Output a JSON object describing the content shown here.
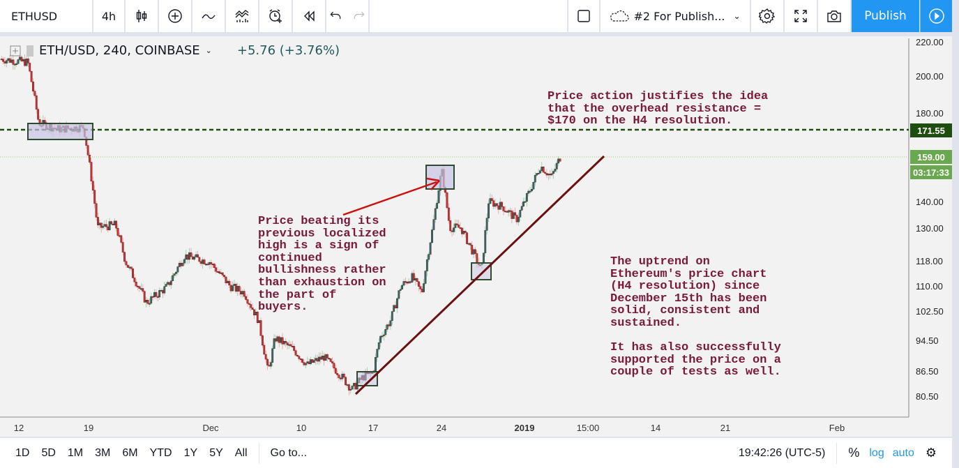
{
  "toolbar": {
    "symbol": "ETHUSD",
    "interval": "4h",
    "layout_name": "#2 For Publish...",
    "publish_label": "Publish",
    "icons": [
      "candles-icon",
      "add-indicator-icon",
      "line-style-icon",
      "indicators-icon",
      "alert-icon",
      "replay-icon",
      "undo-icon",
      "redo-icon",
      "rectangle-icon",
      "cloud-icon",
      "gear-icon",
      "fullscreen-icon",
      "camera-icon",
      "play-icon"
    ]
  },
  "legend": {
    "title": "ETH/USD, 240, COINBASE",
    "change": "+5.76 (+3.76%)"
  },
  "price_axis": {
    "labels": [
      "220.00",
      "200.00",
      "180.00",
      "140.00",
      "130.00",
      "118.00",
      "110.00",
      "102.50",
      "94.50",
      "86.50",
      "80.50"
    ],
    "resistance_tag": "171.55",
    "last_price_tag": "159.00",
    "countdown": "03:17:33"
  },
  "time_axis": {
    "labels": [
      "12",
      "19",
      "Dec",
      "10",
      "17",
      "24",
      "2019",
      "15:00",
      "14",
      "21",
      "Feb"
    ]
  },
  "annotations": {
    "resistance": [
      "Price action justifies the idea",
      "that the overhead resistance =",
      "$170 on the H4 resolution."
    ],
    "breakout": [
      "Price beating its",
      "previous localized",
      "high is a sign of",
      "continued",
      "bullishness rather",
      "than exhaustion on",
      "the part of",
      "buyers."
    ],
    "uptrend": [
      "The uptrend on",
      "Ethereum's price chart",
      "(H4 resolution) since",
      "December 15th has been",
      "solid, consistent and",
      "sustained.",
      "",
      "It has also successfully",
      "supported the price on a",
      "couple of tests as well."
    ]
  },
  "bottombar": {
    "ranges": [
      "1D",
      "5D",
      "1M",
      "3M",
      "6M",
      "YTD",
      "1Y",
      "5Y",
      "All"
    ],
    "goto": "Go to...",
    "clock": "19:42:26 (UTC-5)",
    "percent": "%",
    "log": "log",
    "auto": "auto"
  },
  "colors": {
    "up": "#2c6e6b",
    "down": "#d32f2f",
    "resistance": "#1f4d0f",
    "trendline": "#6b0f0f",
    "arrow": "#cc1111",
    "accent": "#2196f3"
  },
  "chart_data": {
    "type": "candlestick",
    "scale": "log",
    "ylim": [
      80.5,
      220
    ],
    "resistance": 171.55,
    "last_price": 159.0,
    "x_unit": "days since Nov 12",
    "close_keypoints": [
      [
        -1.9,
        210
      ],
      [
        0.9,
        208
      ],
      [
        2.0,
        175
      ],
      [
        4,
        172
      ],
      [
        6.5,
        173
      ],
      [
        7.1,
        155
      ],
      [
        7.9,
        130
      ],
      [
        9.7,
        131
      ],
      [
        10.7,
        118
      ],
      [
        12.8,
        105
      ],
      [
        14.9,
        110
      ],
      [
        16.6,
        120
      ],
      [
        19.1,
        118
      ],
      [
        21.2,
        110
      ],
      [
        22.6,
        108
      ],
      [
        24,
        100
      ],
      [
        25,
        86
      ],
      [
        25.7,
        95
      ],
      [
        27.5,
        92
      ],
      [
        28.9,
        88
      ],
      [
        30.6,
        90
      ],
      [
        32.4,
        85
      ],
      [
        33.4,
        82
      ],
      [
        34.5,
        85
      ],
      [
        35.5,
        86
      ],
      [
        36.2,
        95
      ],
      [
        37.3,
        100
      ],
      [
        38.3,
        110
      ],
      [
        39.4,
        113
      ],
      [
        40.4,
        108
      ],
      [
        41.5,
        130
      ],
      [
        42.4,
        153
      ],
      [
        43.2,
        130
      ],
      [
        44.3,
        130
      ],
      [
        45.7,
        120
      ],
      [
        46.4,
        115
      ],
      [
        47.1,
        140
      ],
      [
        48.5,
        138
      ],
      [
        49.9,
        133
      ],
      [
        51.3,
        145
      ],
      [
        52.3,
        155
      ],
      [
        53.4,
        150
      ],
      [
        54.3,
        159
      ]
    ]
  }
}
